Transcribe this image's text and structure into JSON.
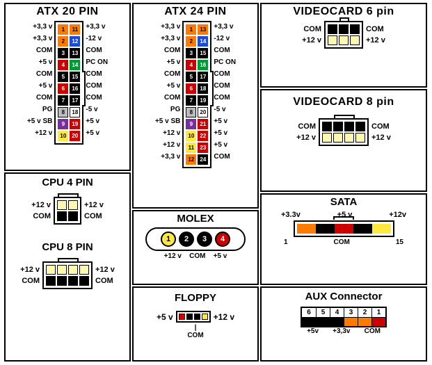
{
  "colors": {
    "orange": "#ff7a00",
    "red": "#cc0000",
    "black": "#000000",
    "yellow": "#ffe940",
    "blue": "#1e4bd6",
    "green": "#009933",
    "grey": "#bdbdbd",
    "purple": "#7a2da0",
    "white": "#ffffff",
    "paleyellow": "#fff9b0"
  },
  "atx20": {
    "title": "ATX 20 PIN",
    "left_labels": [
      "+3,3 v",
      "+3,3 v",
      "COM",
      "+5 v",
      "COM",
      "+5 v",
      "COM",
      "PG",
      "+5 v SB",
      "+12 v"
    ],
    "right_labels": [
      "+3,3 v",
      "-12 v",
      "COM",
      "PC ON",
      "COM",
      "COM",
      "COM",
      "-5 v",
      "+5 v",
      "+5 v"
    ],
    "left_pins": [
      {
        "n": "1",
        "c": "orange"
      },
      {
        "n": "2",
        "c": "orange"
      },
      {
        "n": "3",
        "c": "black"
      },
      {
        "n": "4",
        "c": "red"
      },
      {
        "n": "5",
        "c": "black"
      },
      {
        "n": "6",
        "c": "red"
      },
      {
        "n": "7",
        "c": "black"
      },
      {
        "n": "8",
        "c": "grey"
      },
      {
        "n": "9",
        "c": "purple"
      },
      {
        "n": "10",
        "c": "yellow"
      }
    ],
    "right_pins": [
      {
        "n": "11",
        "c": "orange"
      },
      {
        "n": "12",
        "c": "blue"
      },
      {
        "n": "13",
        "c": "black"
      },
      {
        "n": "14",
        "c": "green"
      },
      {
        "n": "15",
        "c": "black"
      },
      {
        "n": "16",
        "c": "black"
      },
      {
        "n": "17",
        "c": "black"
      },
      {
        "n": "18",
        "c": "white"
      },
      {
        "n": "19",
        "c": "red"
      },
      {
        "n": "20",
        "c": "red"
      }
    ],
    "clip_rows": [
      4,
      7
    ]
  },
  "atx24": {
    "title": "ATX 24 PIN",
    "left_labels": [
      "+3,3 v",
      "+3,3 v",
      "COM",
      "+5 v",
      "COM",
      "+5 v",
      "COM",
      "PG",
      "+5 v SB",
      "+12 v",
      "+12 v",
      "+3,3 v"
    ],
    "right_labels": [
      "+3,3 v",
      "-12 v",
      "COM",
      "PC ON",
      "COM",
      "COM",
      "COM",
      "-5 v",
      "+5 v",
      "+5 v",
      "+5 v",
      "COM"
    ],
    "left_pins": [
      {
        "n": "1",
        "c": "orange"
      },
      {
        "n": "2",
        "c": "orange"
      },
      {
        "n": "3",
        "c": "black"
      },
      {
        "n": "4",
        "c": "red"
      },
      {
        "n": "5",
        "c": "black"
      },
      {
        "n": "6",
        "c": "red"
      },
      {
        "n": "7",
        "c": "black"
      },
      {
        "n": "8",
        "c": "grey"
      },
      {
        "n": "9",
        "c": "purple"
      },
      {
        "n": "10",
        "c": "yellow"
      },
      {
        "n": "11",
        "c": "yellow"
      },
      {
        "n": "12",
        "c": "orange"
      }
    ],
    "right_pins": [
      {
        "n": "13",
        "c": "orange"
      },
      {
        "n": "14",
        "c": "blue"
      },
      {
        "n": "15",
        "c": "black"
      },
      {
        "n": "16",
        "c": "green"
      },
      {
        "n": "17",
        "c": "black"
      },
      {
        "n": "18",
        "c": "black"
      },
      {
        "n": "19",
        "c": "black"
      },
      {
        "n": "20",
        "c": "white"
      },
      {
        "n": "21",
        "c": "red"
      },
      {
        "n": "22",
        "c": "red"
      },
      {
        "n": "23",
        "c": "red"
      },
      {
        "n": "24",
        "c": "black"
      }
    ],
    "clip_rows": [
      4,
      7
    ]
  },
  "cpu4": {
    "title": "CPU 4 PIN",
    "rows": 2,
    "cols": 2,
    "labels_left": [
      "+12 v",
      "COM"
    ],
    "labels_right": [
      "+12 v",
      "COM"
    ],
    "pins": [
      [
        "paleyellow",
        "paleyellow"
      ],
      [
        "black",
        "black"
      ]
    ],
    "clip": {
      "start": 0,
      "span": 2
    }
  },
  "cpu8": {
    "title": "CPU 8 PIN",
    "rows": 2,
    "cols": 4,
    "labels_left": [
      "+12 v",
      "COM"
    ],
    "labels_right": [
      "+12 v",
      "COM"
    ],
    "pins": [
      [
        "paleyellow",
        "paleyellow",
        "paleyellow",
        "paleyellow"
      ],
      [
        "black",
        "black",
        "black",
        "black"
      ]
    ],
    "clip": {
      "start": 1,
      "span": 2
    }
  },
  "vid6": {
    "title": "VIDEOCARD 6 pin",
    "rows": 2,
    "cols": 3,
    "labels_left": [
      "COM",
      "+12 v"
    ],
    "labels_right": [
      "COM",
      "+12 v"
    ],
    "pins": [
      [
        "black",
        "black",
        "black"
      ],
      [
        "paleyellow",
        "paleyellow",
        "paleyellow"
      ]
    ],
    "clip": {
      "start": 1,
      "span": 1
    }
  },
  "vid8": {
    "title": "VIDEOCARD 8 pin",
    "rows": 2,
    "cols": 4,
    "labels_left": [
      "COM",
      "+12 v"
    ],
    "labels_right": [
      "COM",
      "+12 v"
    ],
    "pins": [
      [
        "black",
        "black",
        "black",
        "black"
      ],
      [
        "paleyellow",
        "paleyellow",
        "paleyellow",
        "paleyellow"
      ]
    ],
    "clip": {
      "start": 1,
      "span": 2
    }
  },
  "molex": {
    "title": "MOLEX",
    "pins": [
      {
        "n": "1",
        "cls": "y"
      },
      {
        "n": "2",
        "cls": "k"
      },
      {
        "n": "3",
        "cls": "k"
      },
      {
        "n": "4",
        "cls": "r"
      }
    ],
    "left": "+12 v",
    "right": "+5 v",
    "under": "COM"
  },
  "floppy": {
    "title": "FLOPPY",
    "pins": [
      "red",
      "black",
      "black",
      "yellow"
    ],
    "left": "+5 v",
    "right": "+12 v",
    "under": "COM",
    "under2": ""
  },
  "sata": {
    "title": "SATA",
    "top_labels": [
      "+3.3v",
      "+5 v",
      "+12v"
    ],
    "bot_left": "1",
    "bot_right": "15",
    "bot_mid": "COM",
    "pins": [
      "orange",
      "orange",
      "orange",
      "black",
      "black",
      "black",
      "red",
      "red",
      "red",
      "black",
      "black",
      "black",
      "yellow",
      "yellow",
      "yellow"
    ]
  },
  "aux": {
    "title": "AUX Connector",
    "nums": [
      "6",
      "5",
      "4",
      "3",
      "2",
      "1"
    ],
    "pins": [
      "black",
      "black",
      "black",
      "orange",
      "orange",
      "red"
    ],
    "under": [
      "+5v",
      "+3,3v",
      "COM"
    ]
  }
}
